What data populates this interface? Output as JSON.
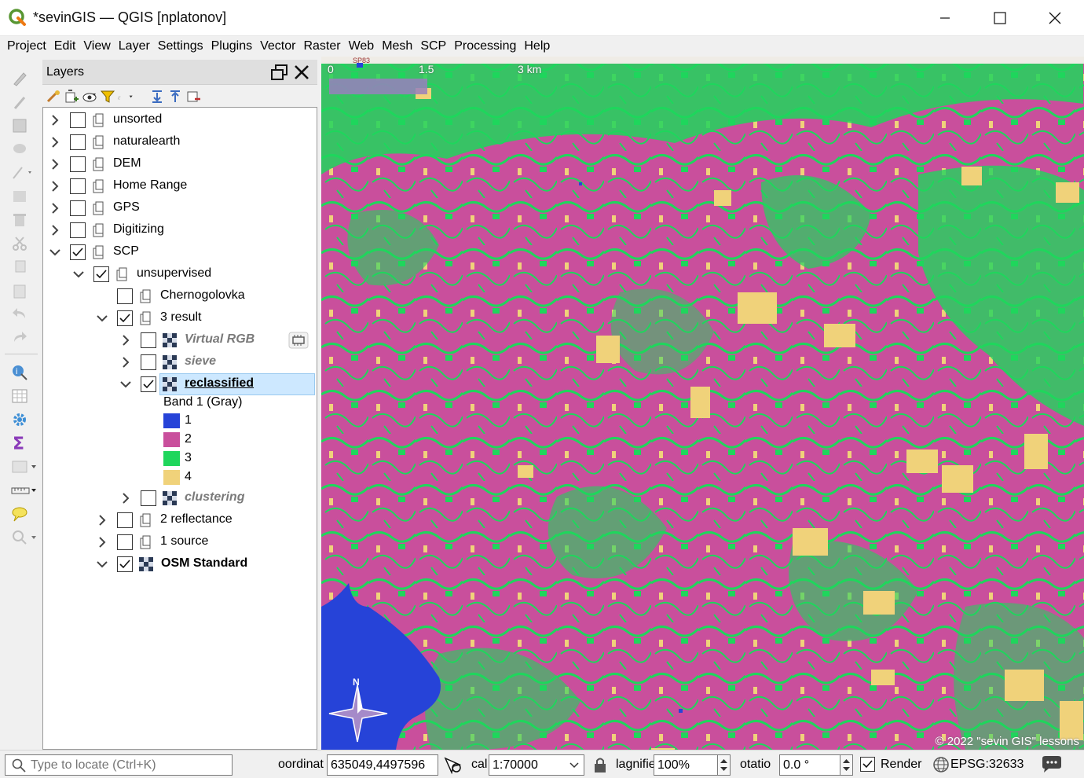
{
  "window": {
    "title": "*sevinGIS — QGIS [nplatonov]"
  },
  "menu": [
    "Project",
    "Edit",
    "View",
    "Layer",
    "Settings",
    "Plugins",
    "Vector",
    "Raster",
    "Web",
    "Mesh",
    "SCP",
    "Processing",
    "Help"
  ],
  "layers_panel": {
    "title": "Layers",
    "tree": [
      {
        "label": "unsorted",
        "checked": false,
        "expanded": false,
        "level": 0,
        "type": "group"
      },
      {
        "label": "naturalearth",
        "checked": false,
        "expanded": false,
        "level": 0,
        "type": "group"
      },
      {
        "label": "DEM",
        "checked": false,
        "expanded": false,
        "level": 0,
        "type": "group"
      },
      {
        "label": "Home Range",
        "checked": false,
        "expanded": false,
        "level": 0,
        "type": "group"
      },
      {
        "label": "GPS",
        "checked": false,
        "expanded": false,
        "level": 0,
        "type": "group"
      },
      {
        "label": "Digitizing",
        "checked": false,
        "expanded": false,
        "level": 0,
        "type": "group"
      },
      {
        "label": "SCP",
        "checked": true,
        "expanded": true,
        "level": 0,
        "type": "group"
      },
      {
        "label": "unsupervised",
        "checked": true,
        "expanded": true,
        "level": 1,
        "type": "group"
      },
      {
        "label": "Chernogolovka",
        "checked": false,
        "expanded": null,
        "level": 2,
        "type": "group"
      },
      {
        "label": "3 result",
        "checked": true,
        "expanded": true,
        "level": 2,
        "type": "group"
      },
      {
        "label": "Virtual RGB",
        "checked": false,
        "expanded": false,
        "level": 3,
        "type": "raster",
        "style": "italic"
      },
      {
        "label": "sieve",
        "checked": false,
        "expanded": false,
        "level": 3,
        "type": "raster",
        "style": "italic"
      },
      {
        "label": "reclassified",
        "checked": true,
        "expanded": true,
        "level": 3,
        "type": "raster",
        "style": "selected"
      }
    ],
    "legend": {
      "band_label": "Band 1 (Gray)",
      "classes": [
        {
          "label": "1",
          "color": "#2643d8"
        },
        {
          "label": "2",
          "color": "#c94f9c"
        },
        {
          "label": "3",
          "color": "#1fd65c"
        },
        {
          "label": "4",
          "color": "#f0d27a"
        }
      ]
    },
    "tree_after": [
      {
        "label": "clustering",
        "checked": false,
        "expanded": false,
        "level": 3,
        "type": "raster",
        "style": "italic"
      },
      {
        "label": "2 reflectance",
        "checked": false,
        "expanded": false,
        "level": 2,
        "type": "group"
      },
      {
        "label": "1 source",
        "checked": false,
        "expanded": false,
        "level": 2,
        "type": "group"
      },
      {
        "label": "OSM Standard",
        "checked": true,
        "expanded": true,
        "level": 2,
        "type": "raster",
        "style": "bold"
      }
    ]
  },
  "map": {
    "scalebar": {
      "t0": "0",
      "t1": "1.5",
      "t2": "3 km"
    },
    "north_label": "N",
    "copyright": "© 2022 \"sevin GIS\" lessons",
    "osm_label": "SP83"
  },
  "statusbar": {
    "locate_placeholder": "Type to locate (Ctrl+K)",
    "coordinate_label": "oordinat",
    "coordinate_value": "635049,4497596",
    "scale_label": "cal",
    "scale_value": "1:70000",
    "magnifier_label": "lagnifie",
    "magnifier_value": "100%",
    "rotation_label": "otatio",
    "rotation_value": "0.0 °",
    "render_label": "Render",
    "crs": "EPSG:32633"
  }
}
